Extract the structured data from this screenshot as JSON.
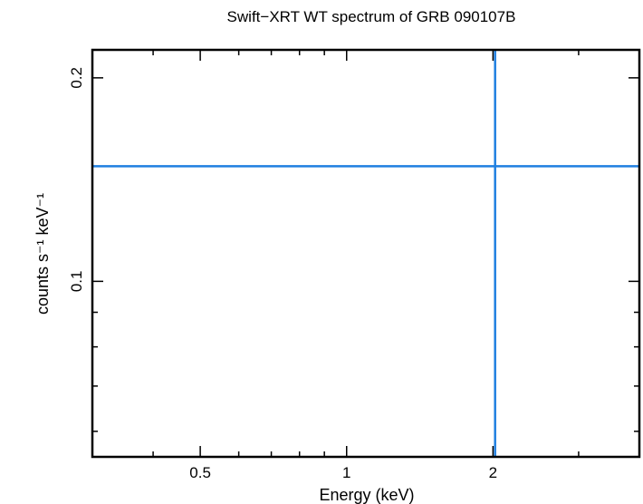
{
  "chart_data": {
    "type": "scatter",
    "title": "Swift−XRT WT spectrum of GRB 090107B",
    "xlabel": "Energy (keV)",
    "ylabel": "counts s⁻¹ keV⁻¹",
    "x_scale": "log",
    "y_scale": "log",
    "xlim": [
      0.3,
      4.0
    ],
    "ylim": [
      0.055,
      0.22
    ],
    "x_ticks": [
      {
        "value": 0.5,
        "label": "0.5"
      },
      {
        "value": 1,
        "label": "1"
      },
      {
        "value": 2,
        "label": "2"
      }
    ],
    "y_ticks": [
      {
        "value": 0.1,
        "label": "0.1"
      },
      {
        "value": 0.2,
        "label": "0.2"
      }
    ],
    "grid": false,
    "series": [
      {
        "color": "#1f7fe0",
        "points": [
          {
            "x": 2.02,
            "y": 0.148,
            "x_err": [
              0.3,
              4.0
            ],
            "y_err": [
              0.055,
              0.22
            ]
          }
        ]
      }
    ]
  }
}
